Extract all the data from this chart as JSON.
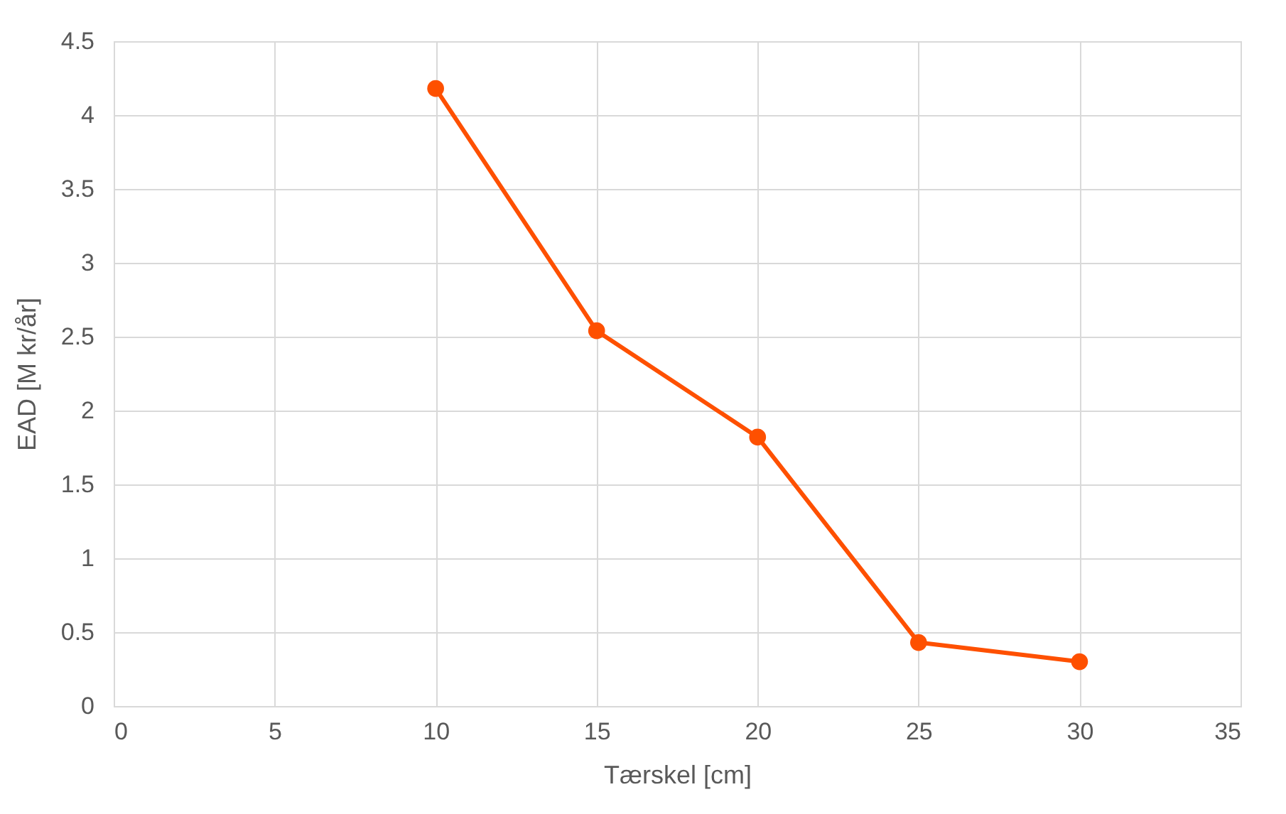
{
  "chart_data": {
    "type": "line",
    "xlabel": "Tærskel [cm]",
    "ylabel": "EAD [M kr/år]",
    "x": [
      10,
      15,
      20,
      25,
      30
    ],
    "series": [
      {
        "color": "#fe5000",
        "values": [
          4.18,
          2.54,
          1.82,
          0.43,
          0.3
        ]
      }
    ],
    "xlim": [
      0,
      35
    ],
    "xticks": [
      0,
      5,
      10,
      15,
      20,
      25,
      30,
      35
    ],
    "ylim": [
      0,
      4.5
    ],
    "yticks": [
      0,
      0.5,
      1,
      1.5,
      2,
      2.5,
      3,
      3.5,
      4,
      4.5
    ],
    "grid": true,
    "marker": "circle",
    "line_style": "solid"
  }
}
